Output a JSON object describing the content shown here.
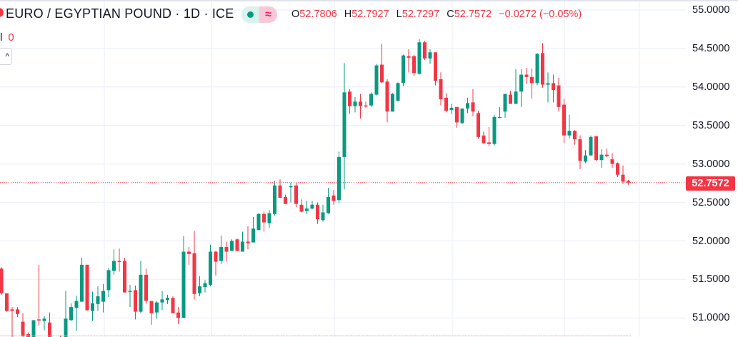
{
  "header": {
    "title": "EURO / EGYPTIAN POUND · 1D · ICE",
    "status_icon": "market-open-dot",
    "delayed_icon": "approx-equal-icon",
    "delayed_glyph": "≈",
    "ohlc": {
      "o_label": "O",
      "o": "52.7806",
      "h_label": "H",
      "h": "52.7927",
      "l_label": "L",
      "l": "52.7297",
      "c_label": "C",
      "c": "52.7572",
      "change": "−0.0272 (−0.05%)"
    },
    "volume_label": "l",
    "volume_value": "0",
    "collapse_glyph": "^"
  },
  "colors": {
    "up": "#089981",
    "down": "#f23645",
    "grid": "#f0f3fa",
    "text": "#131722"
  },
  "price_axis": {
    "labels": [
      "55.0000",
      "54.5000",
      "54.0000",
      "53.5000",
      "53.0000",
      "52.5000",
      "52.0000",
      "51.5000",
      "51.0000"
    ],
    "last_price": "52.7572"
  },
  "chart_data": {
    "type": "candlestick",
    "title": "EURO / EGYPTIAN POUND · 1D · ICE",
    "ylim": [
      50.95,
      55.1
    ],
    "y_ticks": [
      55.0,
      54.5,
      54.0,
      53.5,
      53.0,
      52.5,
      52.0,
      51.5,
      51.0
    ],
    "grid": true,
    "last_price": 52.7572,
    "ohlc_fields": [
      "open",
      "high",
      "low",
      "close"
    ],
    "candles": [
      [
        51.64,
        51.66,
        51.3,
        51.32
      ],
      [
        51.32,
        51.32,
        51.08,
        51.09
      ],
      [
        51.11,
        51.14,
        50.72,
        51.09
      ],
      [
        51.11,
        51.14,
        51.01,
        51.05
      ],
      [
        50.95,
        51.06,
        50.75,
        50.77
      ],
      [
        50.79,
        50.81,
        50.7,
        50.72
      ],
      [
        50.71,
        50.97,
        50.7,
        50.97
      ],
      [
        50.98,
        51.69,
        50.9,
        50.97
      ],
      [
        50.96,
        51.02,
        50.84,
        50.99
      ],
      [
        50.94,
        51.07,
        50.7,
        50.71
      ],
      [
        50.7,
        50.75,
        50.68,
        50.73
      ],
      [
        50.71,
        50.77,
        50.66,
        50.69
      ],
      [
        50.7,
        51.35,
        50.68,
        50.99
      ],
      [
        50.97,
        51.19,
        50.96,
        51.14
      ],
      [
        51.13,
        51.29,
        50.83,
        51.22
      ],
      [
        51.21,
        51.78,
        51.21,
        51.69
      ],
      [
        51.69,
        51.69,
        51.09,
        51.1
      ],
      [
        51.09,
        51.34,
        50.96,
        51.19
      ],
      [
        51.18,
        51.41,
        51.09,
        51.28
      ],
      [
        51.21,
        51.44,
        51.07,
        51.35
      ],
      [
        51.36,
        51.65,
        51.27,
        51.62
      ],
      [
        51.61,
        51.89,
        51.56,
        51.74
      ],
      [
        51.74,
        51.9,
        51.6,
        51.73
      ],
      [
        51.74,
        51.78,
        51.33,
        51.33
      ],
      [
        51.34,
        51.43,
        51.14,
        51.35
      ],
      [
        51.36,
        51.42,
        50.98,
        51.08
      ],
      [
        51.08,
        51.74,
        51.06,
        51.56
      ],
      [
        51.56,
        51.64,
        51.18,
        51.22
      ],
      [
        51.22,
        51.22,
        50.91,
        51.06
      ],
      [
        51.07,
        51.22,
        50.99,
        51.2
      ],
      [
        51.2,
        51.35,
        51.1,
        51.24
      ],
      [
        51.23,
        51.3,
        51.18,
        51.26
      ],
      [
        51.26,
        51.28,
        51.06,
        51.06
      ],
      [
        51.07,
        51.14,
        50.92,
        51.0
      ],
      [
        51.0,
        52.06,
        51.0,
        51.86
      ],
      [
        51.86,
        51.92,
        51.69,
        51.83
      ],
      [
        51.84,
        52.13,
        51.24,
        51.31
      ],
      [
        51.32,
        51.54,
        51.28,
        51.41
      ],
      [
        51.4,
        51.49,
        51.33,
        51.45
      ],
      [
        51.43,
        51.95,
        51.41,
        51.86
      ],
      [
        51.86,
        51.87,
        51.55,
        51.73
      ],
      [
        51.74,
        52.07,
        51.7,
        51.92
      ],
      [
        51.92,
        51.99,
        51.73,
        51.86
      ],
      [
        51.87,
        52.02,
        51.87,
        52.0
      ],
      [
        52.02,
        52.03,
        51.87,
        51.87
      ],
      [
        51.86,
        52.12,
        51.86,
        51.99
      ],
      [
        51.99,
        52.19,
        51.89,
        51.97
      ],
      [
        51.98,
        52.31,
        51.98,
        52.16
      ],
      [
        52.14,
        52.36,
        52.14,
        52.35
      ],
      [
        52.35,
        52.38,
        52.12,
        52.24
      ],
      [
        52.23,
        52.4,
        52.17,
        52.36
      ],
      [
        52.35,
        52.78,
        52.33,
        52.72
      ],
      [
        52.72,
        52.8,
        52.56,
        52.56
      ],
      [
        52.57,
        52.6,
        52.48,
        52.48
      ],
      [
        52.7,
        52.76,
        52.5,
        52.71
      ],
      [
        52.72,
        52.76,
        52.44,
        52.48
      ],
      [
        52.47,
        52.54,
        52.37,
        52.38
      ],
      [
        52.39,
        52.52,
        52.35,
        52.42
      ],
      [
        52.42,
        52.52,
        52.41,
        52.47
      ],
      [
        52.47,
        52.5,
        52.22,
        52.28
      ],
      [
        52.27,
        52.47,
        52.25,
        52.37
      ],
      [
        52.36,
        52.69,
        52.35,
        52.57
      ],
      [
        52.59,
        52.66,
        52.47,
        52.52
      ],
      [
        52.53,
        53.16,
        52.49,
        53.09
      ],
      [
        53.09,
        54.31,
        52.67,
        53.93
      ],
      [
        53.94,
        53.97,
        53.65,
        53.75
      ],
      [
        53.75,
        53.87,
        53.67,
        53.81
      ],
      [
        53.81,
        53.91,
        53.59,
        53.75
      ],
      [
        53.76,
        53.81,
        53.73,
        53.75
      ],
      [
        53.76,
        53.93,
        53.74,
        53.91
      ],
      [
        53.9,
        54.3,
        53.89,
        54.28
      ],
      [
        54.29,
        54.56,
        54.05,
        54.06
      ],
      [
        54.07,
        54.1,
        53.54,
        53.68
      ],
      [
        53.68,
        53.92,
        53.68,
        53.91
      ],
      [
        53.82,
        54.06,
        53.81,
        54.05
      ],
      [
        54.05,
        54.42,
        54.01,
        54.41
      ],
      [
        54.4,
        54.49,
        54.19,
        54.38
      ],
      [
        54.4,
        54.42,
        54.14,
        54.18
      ],
      [
        54.17,
        54.62,
        54.16,
        54.58
      ],
      [
        54.58,
        54.6,
        54.35,
        54.37
      ],
      [
        54.37,
        54.49,
        54.3,
        54.45
      ],
      [
        54.45,
        54.45,
        54.02,
        54.08
      ],
      [
        54.1,
        54.19,
        53.76,
        53.84
      ],
      [
        53.86,
        53.92,
        53.67,
        53.69
      ],
      [
        53.7,
        53.78,
        53.65,
        53.73
      ],
      [
        53.74,
        53.74,
        53.47,
        53.54
      ],
      [
        53.53,
        53.72,
        53.52,
        53.72
      ],
      [
        53.72,
        53.86,
        53.66,
        53.79
      ],
      [
        53.8,
        53.97,
        53.62,
        53.68
      ],
      [
        53.66,
        53.69,
        53.33,
        53.35
      ],
      [
        53.37,
        53.42,
        53.26,
        53.27
      ],
      [
        53.28,
        53.48,
        53.23,
        53.26
      ],
      [
        53.26,
        53.64,
        53.24,
        53.61
      ],
      [
        53.6,
        53.74,
        53.6,
        53.61
      ],
      [
        53.68,
        53.91,
        53.6,
        53.91
      ],
      [
        53.9,
        53.95,
        53.78,
        53.78
      ],
      [
        53.78,
        54.23,
        53.78,
        53.94
      ],
      [
        53.94,
        54.23,
        53.74,
        54.16
      ],
      [
        54.16,
        54.25,
        54.04,
        54.13
      ],
      [
        54.13,
        54.24,
        53.85,
        54.05
      ],
      [
        54.05,
        54.44,
        54.02,
        54.43
      ],
      [
        54.44,
        54.57,
        53.99,
        54.03
      ],
      [
        54.03,
        54.19,
        53.8,
        54.05
      ],
      [
        54.05,
        54.16,
        53.8,
        53.96
      ],
      [
        54.02,
        54.12,
        53.68,
        53.74
      ],
      [
        53.77,
        53.85,
        53.27,
        53.37
      ],
      [
        53.37,
        53.64,
        53.33,
        53.43
      ],
      [
        53.43,
        53.44,
        53.25,
        53.32
      ],
      [
        53.32,
        53.37,
        52.93,
        53.04
      ],
      [
        53.03,
        53.18,
        53.01,
        53.11
      ],
      [
        53.11,
        53.37,
        53.11,
        53.35
      ],
      [
        53.36,
        53.36,
        53.04,
        53.05
      ],
      [
        53.05,
        53.19,
        52.95,
        53.12
      ],
      [
        53.12,
        53.2,
        53.09,
        53.1
      ],
      [
        53.06,
        53.14,
        52.95,
        53.0
      ],
      [
        53.01,
        53.02,
        52.83,
        52.86
      ],
      [
        52.86,
        52.98,
        52.74,
        52.77
      ],
      [
        52.7806,
        52.7927,
        52.7297,
        52.7572
      ]
    ]
  }
}
